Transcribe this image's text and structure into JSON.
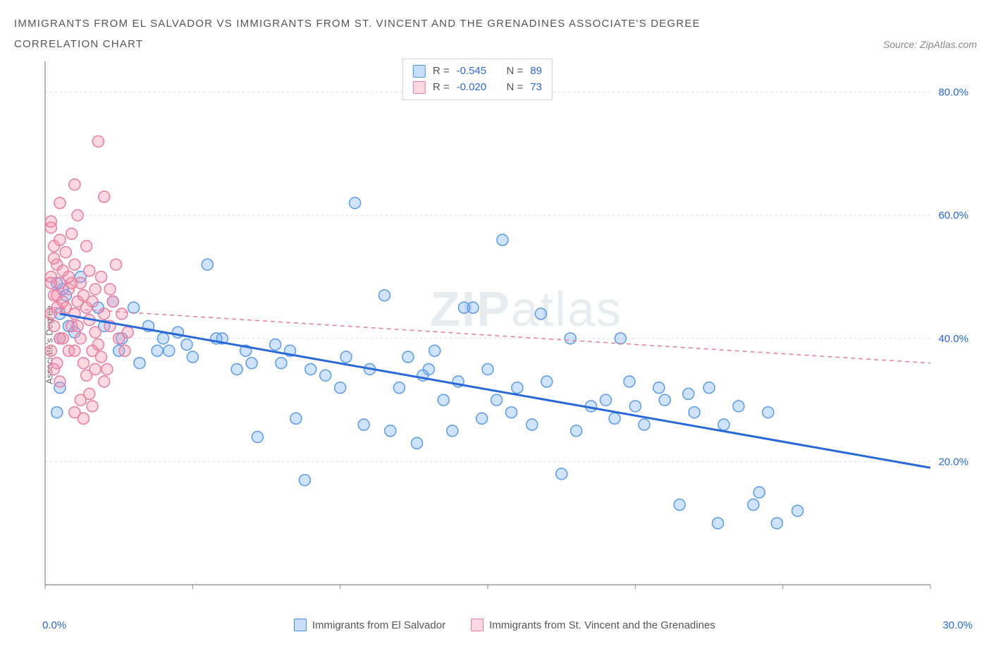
{
  "title_line1": "IMMIGRANTS FROM EL SALVADOR VS IMMIGRANTS FROM ST. VINCENT AND THE GRENADINES ASSOCIATE'S DEGREE",
  "title_line2": "CORRELATION CHART",
  "source": "Source: ZipAtlas.com",
  "ylabel": "Associate's Degree",
  "watermark_bold": "ZIP",
  "watermark_rest": "atlas",
  "chart": {
    "type": "scatter",
    "xlim": [
      0,
      30
    ],
    "ylim": [
      0,
      85
    ],
    "x_ticks": [
      0,
      30
    ],
    "x_tick_labels": [
      "0.0%",
      "30.0%"
    ],
    "y_ticks": [
      20,
      40,
      60,
      80
    ],
    "y_tick_labels": [
      "20.0%",
      "40.0%",
      "60.0%",
      "80.0%"
    ],
    "y_tick_color": "#2968d8",
    "grid_color": "#d8d8d8",
    "axis_color": "#888888",
    "background": "#ffffff",
    "marker_radius": 8,
    "marker_stroke_width": 1.5,
    "series": [
      {
        "name": "Immigrants from El Salvador",
        "color_fill": "rgba(120,175,250,0.35)",
        "color_stroke": "#5a9ae8",
        "R": "-0.545",
        "N": "89",
        "trend": {
          "x1": 0.5,
          "y1": 44,
          "x2": 30,
          "y2": 19,
          "color": "#2968d8",
          "width": 3,
          "dash": ""
        },
        "points": [
          [
            0.4,
            49
          ],
          [
            0.6,
            48
          ],
          [
            0.5,
            44
          ],
          [
            0.8,
            42
          ],
          [
            0.5,
            40
          ],
          [
            0.7,
            47
          ],
          [
            1.0,
            41
          ],
          [
            1.2,
            50
          ],
          [
            0.5,
            32
          ],
          [
            0.4,
            28
          ],
          [
            1.8,
            45
          ],
          [
            2.0,
            42
          ],
          [
            2.3,
            46
          ],
          [
            2.5,
            38
          ],
          [
            2.6,
            40
          ],
          [
            3.0,
            45
          ],
          [
            3.2,
            36
          ],
          [
            3.5,
            42
          ],
          [
            3.8,
            38
          ],
          [
            4.0,
            40
          ],
          [
            4.2,
            38
          ],
          [
            4.5,
            41
          ],
          [
            4.8,
            39
          ],
          [
            5.0,
            37
          ],
          [
            5.5,
            52
          ],
          [
            6.0,
            40
          ],
          [
            6.5,
            35
          ],
          [
            6.8,
            38
          ],
          [
            7.0,
            36
          ],
          [
            7.2,
            24
          ],
          [
            7.8,
            39
          ],
          [
            8.0,
            36
          ],
          [
            8.3,
            38
          ],
          [
            8.5,
            27
          ],
          [
            8.8,
            17
          ],
          [
            9.0,
            35
          ],
          [
            9.5,
            34
          ],
          [
            10.0,
            32
          ],
          [
            10.2,
            37
          ],
          [
            10.5,
            62
          ],
          [
            10.8,
            26
          ],
          [
            11.0,
            35
          ],
          [
            11.5,
            47
          ],
          [
            11.7,
            25
          ],
          [
            12.0,
            32
          ],
          [
            12.3,
            37
          ],
          [
            12.6,
            23
          ],
          [
            13.0,
            35
          ],
          [
            13.2,
            38
          ],
          [
            13.5,
            30
          ],
          [
            13.8,
            25
          ],
          [
            14.0,
            33
          ],
          [
            14.5,
            45
          ],
          [
            14.8,
            27
          ],
          [
            15.0,
            35
          ],
          [
            15.3,
            30
          ],
          [
            15.5,
            56
          ],
          [
            15.8,
            28
          ],
          [
            16.0,
            32
          ],
          [
            16.5,
            26
          ],
          [
            17.0,
            33
          ],
          [
            17.5,
            18
          ],
          [
            17.8,
            40
          ],
          [
            18.0,
            25
          ],
          [
            18.5,
            29
          ],
          [
            19.0,
            30
          ],
          [
            19.3,
            27
          ],
          [
            19.8,
            33
          ],
          [
            20.0,
            29
          ],
          [
            20.3,
            26
          ],
          [
            20.8,
            32
          ],
          [
            21.0,
            30
          ],
          [
            21.5,
            13
          ],
          [
            22.0,
            28
          ],
          [
            22.5,
            32
          ],
          [
            22.8,
            10
          ],
          [
            23.0,
            26
          ],
          [
            23.5,
            29
          ],
          [
            24.0,
            13
          ],
          [
            24.2,
            15
          ],
          [
            24.5,
            28
          ],
          [
            24.8,
            10
          ],
          [
            25.5,
            12
          ],
          [
            21.8,
            31
          ],
          [
            19.5,
            40
          ],
          [
            12.8,
            34
          ],
          [
            14.2,
            45
          ],
          [
            16.8,
            44
          ],
          [
            5.8,
            40
          ]
        ]
      },
      {
        "name": "Immigrants from St. Vincent and the Grenadines",
        "color_fill": "rgba(246,143,168,0.35)",
        "color_stroke": "#e87ca0",
        "R": "-0.020",
        "N": "73",
        "trend": {
          "x1": 0.3,
          "y1": 45,
          "x2": 30,
          "y2": 36,
          "color": "#e87ca0",
          "width": 1.5,
          "dash": "6,5"
        },
        "points": [
          [
            0.2,
            58
          ],
          [
            0.3,
            55
          ],
          [
            0.4,
            52
          ],
          [
            0.2,
            50
          ],
          [
            0.5,
            49
          ],
          [
            0.3,
            47
          ],
          [
            0.4,
            45
          ],
          [
            0.2,
            44
          ],
          [
            0.3,
            42
          ],
          [
            0.5,
            40
          ],
          [
            0.2,
            38
          ],
          [
            0.4,
            36
          ],
          [
            0.3,
            35
          ],
          [
            0.5,
            33
          ],
          [
            0.2,
            49
          ],
          [
            0.4,
            47
          ],
          [
            0.6,
            51
          ],
          [
            0.3,
            53
          ],
          [
            0.5,
            56
          ],
          [
            0.2,
            59
          ],
          [
            0.8,
            48
          ],
          [
            0.7,
            45
          ],
          [
            0.9,
            42
          ],
          [
            0.6,
            40
          ],
          [
            0.8,
            38
          ],
          [
            1.0,
            44
          ],
          [
            0.9,
            49
          ],
          [
            1.1,
            46
          ],
          [
            1.0,
            52
          ],
          [
            1.2,
            40
          ],
          [
            1.0,
            38
          ],
          [
            1.3,
            36
          ],
          [
            1.1,
            60
          ],
          [
            1.4,
            55
          ],
          [
            1.2,
            30
          ],
          [
            1.0,
            28
          ],
          [
            1.5,
            31
          ],
          [
            1.3,
            27
          ],
          [
            1.6,
            29
          ],
          [
            1.4,
            34
          ],
          [
            1.5,
            43
          ],
          [
            1.7,
            41
          ],
          [
            1.6,
            46
          ],
          [
            1.8,
            39
          ],
          [
            1.7,
            48
          ],
          [
            1.5,
            51
          ],
          [
            2.0,
            44
          ],
          [
            1.9,
            37
          ],
          [
            2.2,
            42
          ],
          [
            2.0,
            63
          ],
          [
            2.3,
            46
          ],
          [
            2.1,
            35
          ],
          [
            2.5,
            40
          ],
          [
            2.4,
            52
          ],
          [
            2.7,
            38
          ],
          [
            1.2,
            49
          ],
          [
            1.4,
            45
          ],
          [
            0.7,
            54
          ],
          [
            0.9,
            57
          ],
          [
            1.1,
            42
          ],
          [
            1.3,
            47
          ],
          [
            0.6,
            46
          ],
          [
            0.8,
            50
          ],
          [
            2.0,
            33
          ],
          [
            1.8,
            72
          ],
          [
            0.5,
            62
          ],
          [
            1.0,
            65
          ],
          [
            1.7,
            35
          ],
          [
            2.6,
            44
          ],
          [
            2.8,
            41
          ],
          [
            1.9,
            50
          ],
          [
            1.6,
            38
          ],
          [
            2.2,
            48
          ]
        ]
      }
    ]
  },
  "legend_rn_label_r": "R =",
  "legend_rn_label_n": "N =",
  "bottom_legend": {
    "series1": "Immigrants from El Salvador",
    "series2": "Immigrants from St. Vincent and the Grenadines"
  }
}
